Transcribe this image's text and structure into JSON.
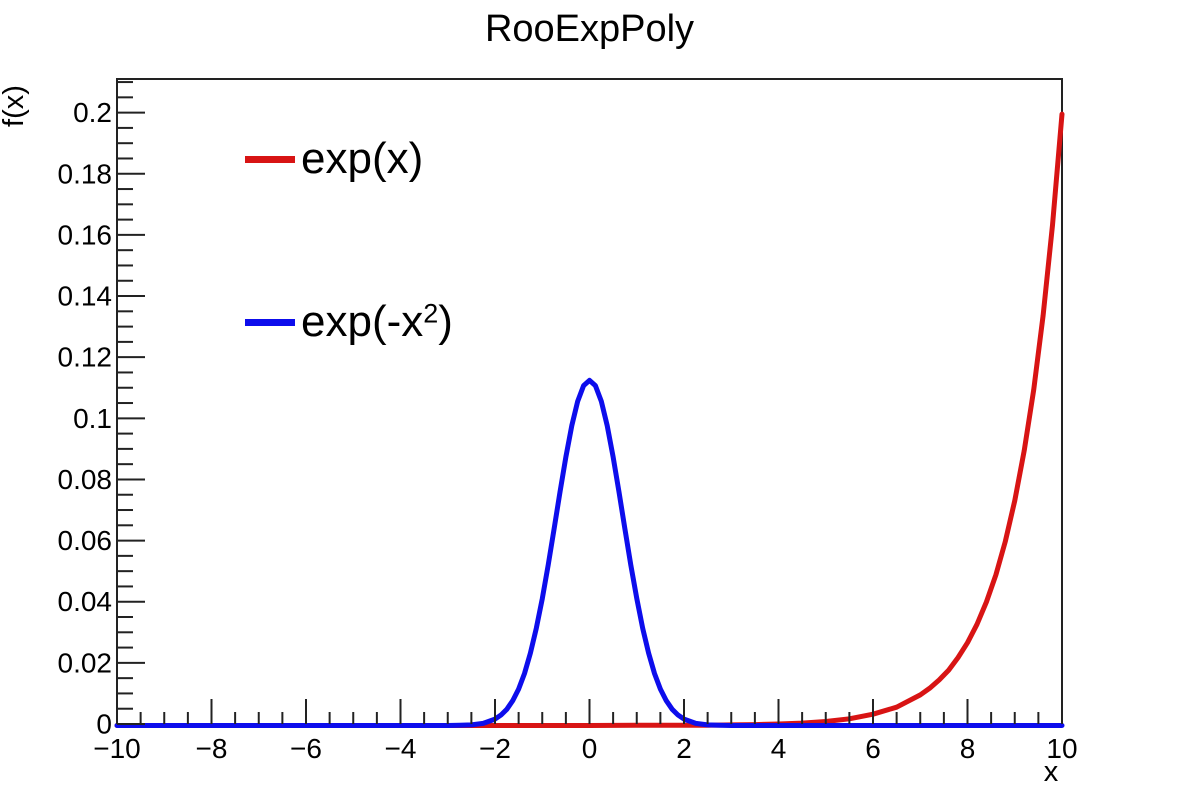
{
  "chart_data": {
    "type": "line",
    "title": "RooExpPoly",
    "xlabel": "x",
    "ylabel": "f(x)",
    "xlim": [
      -10,
      10
    ],
    "ylim": [
      0,
      0.211
    ],
    "grid": false,
    "legend_position": "top-left",
    "frame_color": "#222222",
    "background_color": "#ffffff",
    "x_axis": {
      "major_ticks": [
        -10,
        -8,
        -6,
        -4,
        -2,
        0,
        2,
        4,
        6,
        8,
        10
      ],
      "tick_labels": [
        "−10",
        "−8",
        "−6",
        "−4",
        "−2",
        "0",
        "2",
        "4",
        "6",
        "8",
        "10"
      ],
      "minor_step": 0.5
    },
    "y_axis": {
      "major_ticks": [
        0,
        0.02,
        0.04,
        0.06,
        0.08,
        0.1,
        0.12,
        0.14,
        0.16,
        0.18,
        0.2
      ],
      "tick_labels": [
        "0",
        "0.02",
        "0.04",
        "0.06",
        "0.08",
        "0.1",
        "0.12",
        "0.14",
        "0.16",
        "0.18",
        "0.2"
      ],
      "minor_step": 0.005
    },
    "legend": {
      "entries": [
        {
          "label_prefix": "exp(x)",
          "label_sup": "",
          "label_suffix": "",
          "color": "#d81414"
        },
        {
          "label_prefix": "exp(-x",
          "label_sup": "2",
          "label_suffix": ")",
          "color": "#0d0dec"
        }
      ]
    },
    "series": [
      {
        "name": "exp(x)",
        "color": "#d81414",
        "points": [
          [
            -10,
            0
          ],
          [
            -9,
            0
          ],
          [
            -8,
            0
          ],
          [
            -7,
            0
          ],
          [
            -6,
            0
          ],
          [
            -5,
            0
          ],
          [
            -4,
            0
          ],
          [
            -3,
            0
          ],
          [
            -2,
            0
          ],
          [
            -1,
            0
          ],
          [
            0,
            0
          ],
          [
            1,
            0.0001
          ],
          [
            2,
            0.0001
          ],
          [
            2.5,
            0.0001
          ],
          [
            3,
            0.0002
          ],
          [
            3.5,
            0.0003
          ],
          [
            4,
            0.0005
          ],
          [
            4.5,
            0.0008
          ],
          [
            5,
            0.0013
          ],
          [
            5.5,
            0.0022
          ],
          [
            6,
            0.0037
          ],
          [
            6.5,
            0.006
          ],
          [
            7,
            0.01
          ],
          [
            7.2,
            0.0122
          ],
          [
            7.4,
            0.0149
          ],
          [
            7.6,
            0.0181
          ],
          [
            7.8,
            0.0222
          ],
          [
            8,
            0.0271
          ],
          [
            8.2,
            0.0331
          ],
          [
            8.4,
            0.0404
          ],
          [
            8.6,
            0.0493
          ],
          [
            8.8,
            0.0602
          ],
          [
            9,
            0.0736
          ],
          [
            9.2,
            0.0899
          ],
          [
            9.4,
            0.1098
          ],
          [
            9.6,
            0.1341
          ],
          [
            9.8,
            0.1637
          ],
          [
            10,
            0.2
          ]
        ]
      },
      {
        "name": "exp(-x2)",
        "color": "#0d0dec",
        "points": [
          [
            -10,
            0
          ],
          [
            -9,
            0
          ],
          [
            -8,
            0
          ],
          [
            -7,
            0
          ],
          [
            -6,
            0
          ],
          [
            -5,
            0
          ],
          [
            -4,
            0
          ],
          [
            -3.5,
            0
          ],
          [
            -3,
            0
          ],
          [
            -2.75,
            0.0001
          ],
          [
            -2.5,
            0.0002
          ],
          [
            -2.25,
            0.0007
          ],
          [
            -2,
            0.0021
          ],
          [
            -1.875,
            0.0034
          ],
          [
            -1.75,
            0.0053
          ],
          [
            -1.625,
            0.0081
          ],
          [
            -1.5,
            0.0119
          ],
          [
            -1.375,
            0.017
          ],
          [
            -1.25,
            0.0237
          ],
          [
            -1.125,
            0.0318
          ],
          [
            -1,
            0.0415
          ],
          [
            -0.875,
            0.0525
          ],
          [
            -0.75,
            0.0643
          ],
          [
            -0.625,
            0.0764
          ],
          [
            -0.5,
            0.0879
          ],
          [
            -0.375,
            0.0981
          ],
          [
            -0.25,
            0.1061
          ],
          [
            -0.125,
            0.1112
          ],
          [
            0,
            0.1129
          ],
          [
            0.125,
            0.1112
          ],
          [
            0.25,
            0.1061
          ],
          [
            0.375,
            0.0981
          ],
          [
            0.5,
            0.0879
          ],
          [
            0.625,
            0.0764
          ],
          [
            0.75,
            0.0643
          ],
          [
            0.875,
            0.0525
          ],
          [
            1,
            0.0415
          ],
          [
            1.125,
            0.0318
          ],
          [
            1.25,
            0.0237
          ],
          [
            1.375,
            0.017
          ],
          [
            1.5,
            0.0119
          ],
          [
            1.625,
            0.0081
          ],
          [
            1.75,
            0.0053
          ],
          [
            1.875,
            0.0034
          ],
          [
            2,
            0.0021
          ],
          [
            2.25,
            0.0007
          ],
          [
            2.5,
            0.0002
          ],
          [
            2.75,
            0.0001
          ],
          [
            3,
            0
          ],
          [
            3.5,
            0
          ],
          [
            4,
            0
          ],
          [
            5,
            0
          ],
          [
            6,
            0
          ],
          [
            7,
            0
          ],
          [
            8,
            0
          ],
          [
            9,
            0
          ],
          [
            10,
            0
          ]
        ]
      }
    ]
  }
}
